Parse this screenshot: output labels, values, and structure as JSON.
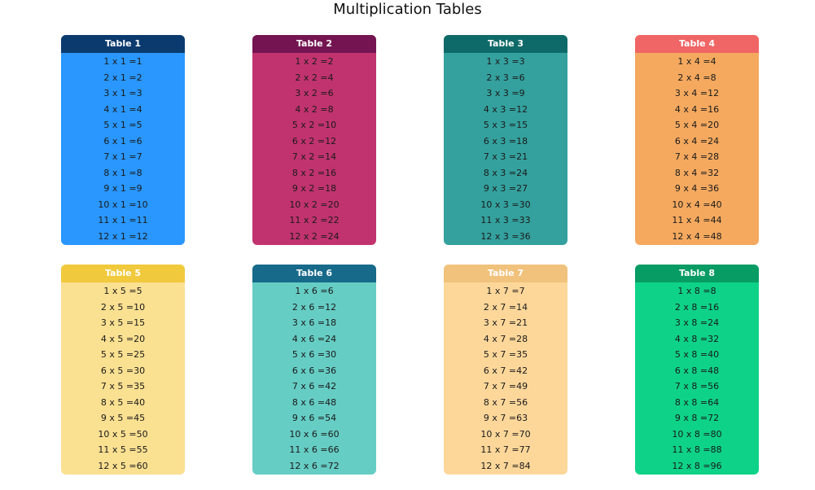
{
  "title": "Multiplication Tables",
  "tables": [
    {
      "header": "Table 1",
      "header_color": "#0b3a6e",
      "body_color": "#2997ff",
      "rows": [
        "1 x 1 =1",
        "2 x 1 =2",
        "3 x 1 =3",
        "4 x 1 =4",
        "5 x 1 =5",
        "6 x 1 =6",
        "7 x 1 =7",
        "8 x 1 =8",
        "9 x 1 =9",
        "10 x 1 =10",
        "11 x 1 =11",
        "12 x 1 =12"
      ]
    },
    {
      "header": "Table 2",
      "header_color": "#741551",
      "body_color": "#c1336f",
      "rows": [
        "1 x 2 =2",
        "2 x 2 =4",
        "3 x 2 =6",
        "4 x 2 =8",
        "5 x 2 =10",
        "6 x 2 =12",
        "7 x 2 =14",
        "8 x 2 =16",
        "9 x 2 =18",
        "10 x 2 =20",
        "11 x 2 =22",
        "12 x 2 =24"
      ]
    },
    {
      "header": "Table 3",
      "header_color": "#0e6a68",
      "body_color": "#34a19e",
      "rows": [
        "1 x 3 =3",
        "2 x 3 =6",
        "3 x 3 =9",
        "4 x 3 =12",
        "5 x 3 =15",
        "6 x 3 =18",
        "7 x 3 =21",
        "8 x 3 =24",
        "9 x 3 =27",
        "10 x 3 =30",
        "11 x 3 =33",
        "12 x 3 =36"
      ]
    },
    {
      "header": "Table 4",
      "header_color": "#f06565",
      "body_color": "#f4a95f",
      "rows": [
        "1 x 4 =4",
        "2 x 4 =8",
        "3 x 4 =12",
        "4 x 4 =16",
        "5 x 4 =20",
        "6 x 4 =24",
        "7 x 4 =28",
        "8 x 4 =32",
        "9 x 4 =36",
        "10 x 4 =40",
        "11 x 4 =44",
        "12 x 4 =48"
      ]
    },
    {
      "header": "Table 5",
      "header_color": "#f1c93c",
      "body_color": "#fae091",
      "rows": [
        "1 x 5 =5",
        "2 x 5 =10",
        "3 x 5 =15",
        "4 x 5 =20",
        "5 x 5 =25",
        "6 x 5 =30",
        "7 x 5 =35",
        "8 x 5 =40",
        "9 x 5 =45",
        "10 x 5 =50",
        "11 x 5 =55",
        "12 x 5 =60"
      ]
    },
    {
      "header": "Table 6",
      "header_color": "#176a8a",
      "body_color": "#66cdc4",
      "rows": [
        "1 x 6 =6",
        "2 x 6 =12",
        "3 x 6 =18",
        "4 x 6 =24",
        "5 x 6 =30",
        "6 x 6 =36",
        "7 x 6 =42",
        "8 x 6 =48",
        "9 x 6 =54",
        "10 x 6 =60",
        "11 x 6 =66",
        "12 x 6 =72"
      ]
    },
    {
      "header": "Table 7",
      "header_color": "#f1c27c",
      "body_color": "#fdd79a",
      "rows": [
        "1 x 7 =7",
        "2 x 7 =14",
        "3 x 7 =21",
        "4 x 7 =28",
        "5 x 7 =35",
        "6 x 7 =42",
        "7 x 7 =49",
        "8 x 7 =56",
        "9 x 7 =63",
        "10 x 7 =70",
        "11 x 7 =77",
        "12 x 7 =84"
      ]
    },
    {
      "header": "Table 8",
      "header_color": "#069c64",
      "body_color": "#0ed288",
      "rows": [
        "1 x 8 =8",
        "2 x 8 =16",
        "3 x 8 =24",
        "4 x 8 =32",
        "5 x 8 =40",
        "6 x 8 =48",
        "7 x 8 =56",
        "8 x 8 =64",
        "9 x 8 =72",
        "10 x 8 =80",
        "11 x 8 =88",
        "12 x 8 =96"
      ]
    }
  ]
}
